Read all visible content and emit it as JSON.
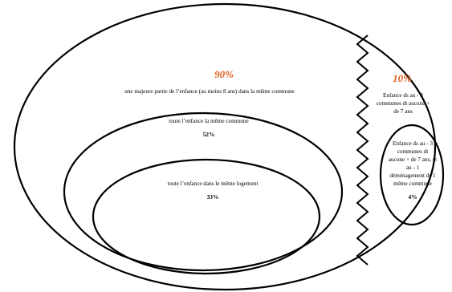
{
  "diagram": {
    "outer": {
      "percent": "90%",
      "label": "une majeure partie de l’enfance (au moins 8 ans) dans la même commune"
    },
    "middle": {
      "label": "toute l’enfance la même commune",
      "percent": "52%"
    },
    "inner": {
      "label": "toute l’enfance dans le même logement",
      "percent": "33%"
    },
    "right": {
      "percent": "10%",
      "label_lines": [
        "Enfance ds au - 3",
        "communes dt aucune +",
        "de 7 ans"
      ]
    },
    "right_small": {
      "label_lines": [
        "Enfance ds au - 3",
        "communes dt",
        "aucune + de 7 ans, et",
        "au - 1",
        "déménagement ds 1",
        "même commune"
      ],
      "percent": "4%"
    },
    "colors": {
      "accent": "#e0611f",
      "stroke": "#000000",
      "background": "#ffffff"
    }
  }
}
